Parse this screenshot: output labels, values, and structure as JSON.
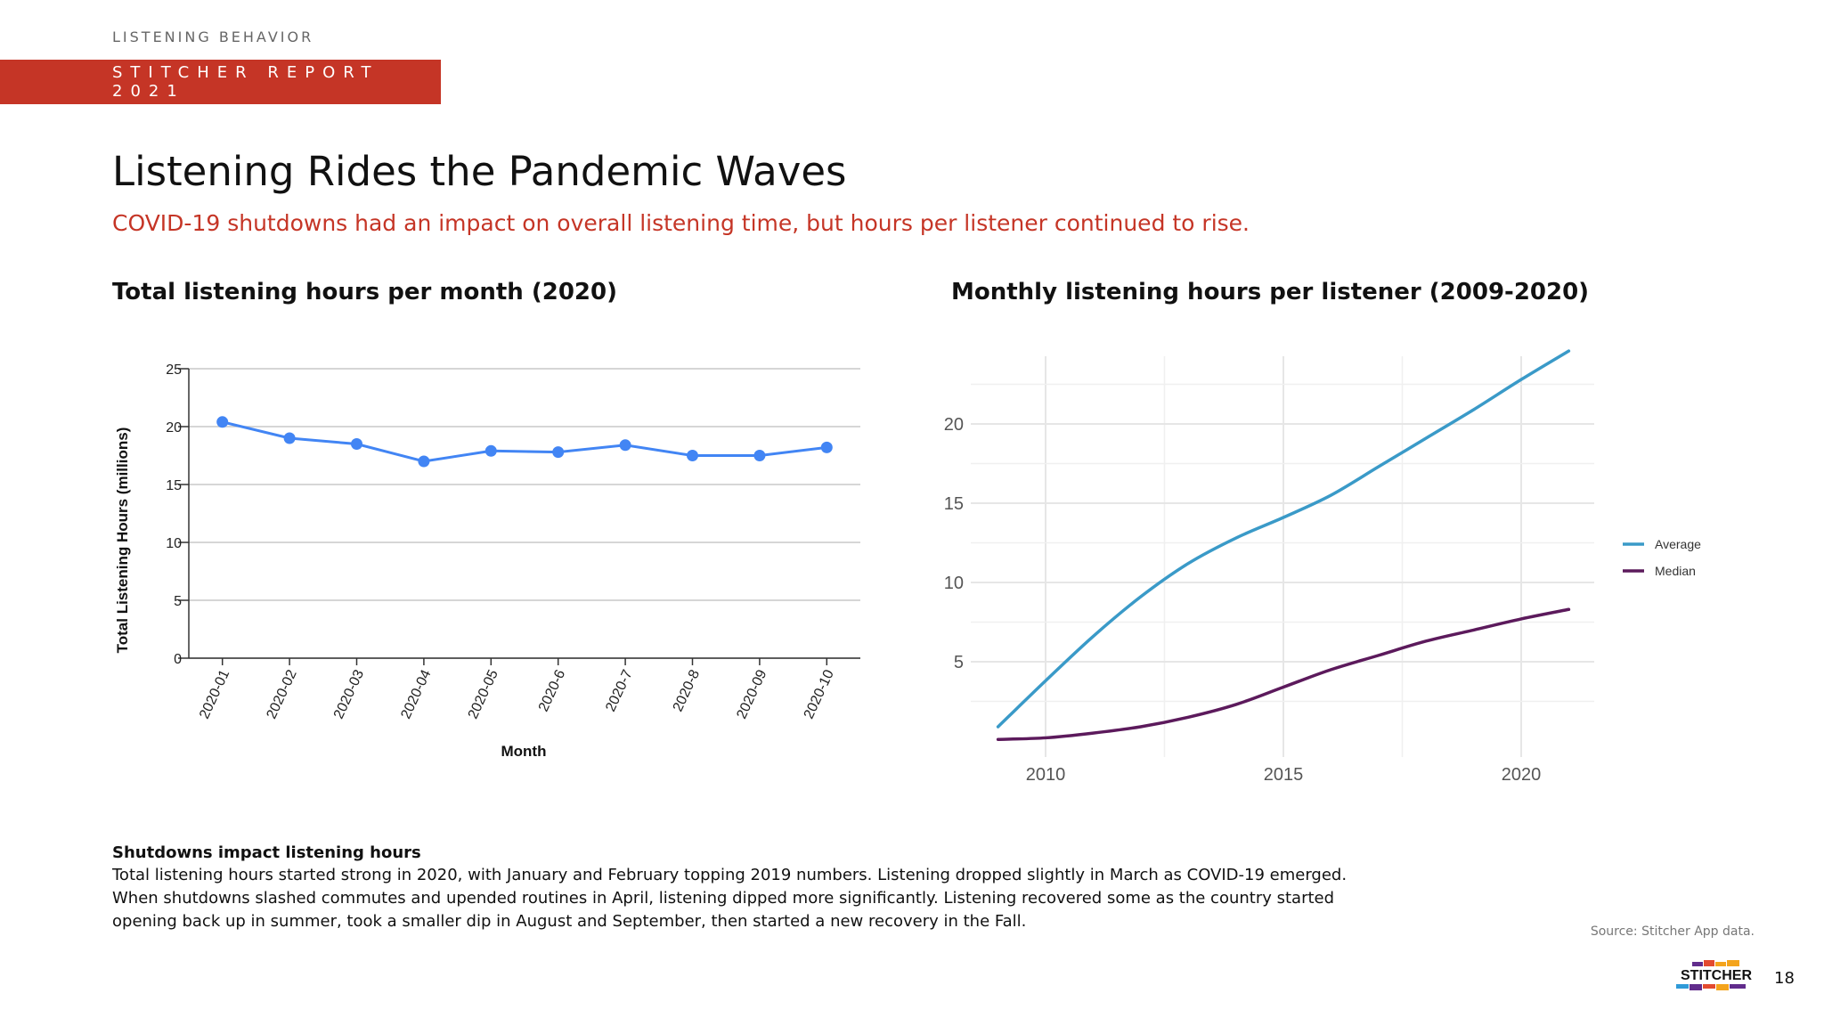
{
  "header": {
    "section_label": "LISTENING BEHAVIOR",
    "report_label": "STITCHER REPORT 2021"
  },
  "title": "Listening Rides the Pandemic Waves",
  "subtitle": "COVID-19 shutdowns had an impact on overall listening time, but hours per listener continued to rise.",
  "colors": {
    "brand_red": "#c53526",
    "line_blue": "#4285f4",
    "average": "#3a9ac8",
    "median": "#5c1a5c"
  },
  "chart_data": [
    {
      "type": "line",
      "title": "Total listening hours per month (2020)",
      "xlabel": "Month",
      "ylabel": "Total Listening Hours (millions)",
      "categories": [
        "2020-01",
        "2020-02",
        "2020-03",
        "2020-04",
        "2020-05",
        "2020-6",
        "2020-7",
        "2020-8",
        "2020-09",
        "2020-10"
      ],
      "values": [
        20.4,
        19.0,
        18.5,
        17.0,
        17.9,
        17.8,
        18.4,
        17.5,
        17.5,
        18.2
      ],
      "ylim": [
        0,
        25
      ],
      "yticks": [
        "0",
        "5",
        "10",
        "15",
        "20",
        "25"
      ],
      "grid": true,
      "markers": true
    },
    {
      "type": "line",
      "title": "Monthly listening hours per listener (2009-2020)",
      "xlim": [
        2009,
        2021
      ],
      "ylim": [
        0,
        24
      ],
      "xticks": [
        "2010",
        "2015",
        "2020"
      ],
      "yticks": [
        "5",
        "10",
        "15",
        "20"
      ],
      "grid": true,
      "legend_position": "right",
      "series": [
        {
          "name": "Average",
          "x": [
            2009,
            2010,
            2011,
            2012,
            2013,
            2014,
            2015,
            2016,
            2017,
            2018,
            2019,
            2020,
            2021
          ],
          "values": [
            0.9,
            3.8,
            6.6,
            9.1,
            11.2,
            12.8,
            14.1,
            15.5,
            17.3,
            19.1,
            20.9,
            22.8,
            24.6
          ]
        },
        {
          "name": "Median",
          "x": [
            2009,
            2010,
            2011,
            2012,
            2013,
            2014,
            2015,
            2016,
            2017,
            2018,
            2019,
            2020,
            2021
          ],
          "values": [
            0.1,
            0.2,
            0.5,
            0.9,
            1.5,
            2.3,
            3.4,
            4.5,
            5.4,
            6.3,
            7.0,
            7.7,
            8.3
          ]
        }
      ]
    }
  ],
  "body": {
    "heading": "Shutdowns impact listening hours",
    "text": "Total listening hours started strong in 2020, with January and February topping 2019 numbers. Listening dropped slightly in March as COVID-19 emerged. When shutdowns slashed commutes and upended routines in April, listening dipped more significantly. Listening recovered some as the country started opening back up in summer, took a smaller dip in August and September, then started a new recovery in the Fall."
  },
  "source": "Source: Stitcher App data.",
  "footer": {
    "logo_text": "STITCHER",
    "page_number": "18"
  }
}
